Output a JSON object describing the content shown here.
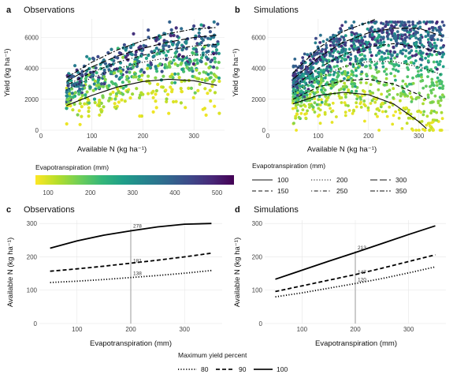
{
  "panels": {
    "a": {
      "letter": "a",
      "title": "Observations"
    },
    "b": {
      "letter": "b",
      "title": "Simulations"
    },
    "c": {
      "letter": "c",
      "title": "Observations"
    },
    "d": {
      "letter": "d",
      "title": "Simulations"
    }
  },
  "labels": {
    "yield_axis": "Yield (kg ha⁻¹)",
    "available_n_axis": "Available N (kg ha⁻¹)",
    "et_axis": "Evapotranspiration (mm)"
  },
  "legend_top": {
    "colorbar_title": "Evapotranspiration (mm)",
    "colorbar_ticks": [
      "100",
      "200",
      "300",
      "400",
      "500"
    ],
    "colorbar_range": [
      70,
      540
    ],
    "colors": [
      "#fde725",
      "#b5de2b",
      "#6ece58",
      "#35b779",
      "#1f9e89",
      "#26828e",
      "#31688e",
      "#3e4989",
      "#482878",
      "#440154"
    ],
    "linetype_title": "Evapotranspiration (mm)",
    "linetype_entries": [
      {
        "label": "100",
        "style": "solid"
      },
      {
        "label": "150",
        "style": "dashed"
      },
      {
        "label": "200",
        "style": "dotted"
      },
      {
        "label": "250",
        "style": "dotdash"
      },
      {
        "label": "300",
        "style": "longdash"
      },
      {
        "label": "350",
        "style": "twodash"
      }
    ]
  },
  "legend_bottom": {
    "title": "Maximum yield percent",
    "entries": [
      {
        "label": "80",
        "style": "dotted"
      },
      {
        "label": "90",
        "style": "dashed"
      },
      {
        "label": "100",
        "style": "solid"
      }
    ]
  },
  "chart_data": [
    {
      "id": "a",
      "type": "scatter",
      "title": "Observations",
      "xlabel": "Available N (kg ha⁻¹)",
      "ylabel": "Yield (kg ha⁻¹)",
      "xlim": [
        0,
        360
      ],
      "ylim": [
        0,
        7200
      ],
      "xticks": [
        0,
        100,
        200,
        300
      ],
      "yticks": [
        0,
        2000,
        4000,
        6000
      ],
      "color_by": "Evapotranspiration (mm)",
      "series": [
        {
          "et": 100,
          "style": "solid",
          "x": [
            50,
            100,
            150,
            200,
            250,
            300,
            345
          ],
          "y": [
            1600,
            2250,
            2800,
            3150,
            3300,
            3200,
            2900
          ]
        },
        {
          "et": 200,
          "style": "dotted",
          "x": [
            50,
            100,
            150,
            200,
            250,
            300,
            345
          ],
          "y": [
            2600,
            3400,
            4000,
            4400,
            4700,
            4850,
            4900
          ]
        },
        {
          "et": 250,
          "style": "dotdash",
          "x": [
            50,
            100,
            150,
            200,
            250,
            300,
            345
          ],
          "y": [
            2900,
            3750,
            4400,
            4850,
            5200,
            5450,
            5550
          ]
        },
        {
          "et": 300,
          "style": "longdash",
          "x": [
            50,
            100,
            150,
            200,
            250,
            300,
            345
          ],
          "y": [
            3150,
            4100,
            4800,
            5300,
            5700,
            6000,
            6150
          ]
        },
        {
          "et": 350,
          "style": "twodash",
          "x": [
            50,
            100,
            150,
            200,
            250,
            300,
            345
          ],
          "y": [
            3400,
            4400,
            5200,
            5800,
            6250,
            6550,
            6650
          ]
        }
      ]
    },
    {
      "id": "b",
      "type": "scatter",
      "title": "Simulations",
      "xlabel": "Available N (kg ha⁻¹)",
      "ylabel": "Yield (kg ha⁻¹)",
      "xlim": [
        0,
        360
      ],
      "ylim": [
        0,
        7200
      ],
      "xticks": [
        0,
        100,
        200,
        300
      ],
      "yticks": [
        0,
        2000,
        4000,
        6000
      ],
      "color_by": "Evapotranspiration (mm)",
      "series": [
        {
          "et": 100,
          "style": "solid",
          "x": [
            50,
            100,
            150,
            200,
            250,
            300,
            315
          ],
          "y": [
            1700,
            2250,
            2450,
            2300,
            1700,
            550,
            100
          ]
        },
        {
          "et": 150,
          "style": "dashed",
          "x": [
            50,
            100,
            150,
            200,
            250,
            300,
            315
          ],
          "y": [
            2000,
            2800,
            3200,
            3300,
            3000,
            2300,
            2000
          ]
        },
        {
          "et": 200,
          "style": "dotted",
          "x": [
            50,
            100,
            150,
            200,
            250,
            300,
            345
          ],
          "y": [
            2400,
            3400,
            4100,
            4450,
            4450,
            4100,
            3600
          ]
        },
        {
          "et": 250,
          "style": "dotdash",
          "x": [
            50,
            100,
            150,
            200,
            250,
            300,
            345
          ],
          "y": [
            2800,
            4000,
            4900,
            5400,
            5600,
            5400,
            5000
          ]
        },
        {
          "et": 300,
          "style": "longdash",
          "x": [
            50,
            100,
            150,
            200,
            250,
            300,
            345
          ],
          "y": [
            3300,
            4700,
            5700,
            6300,
            6600,
            6600,
            6100
          ]
        },
        {
          "et": 350,
          "style": "twodash",
          "x": [
            50,
            100,
            150,
            200,
            215
          ],
          "y": [
            3700,
            5300,
            6400,
            7000,
            7200
          ]
        }
      ]
    },
    {
      "id": "c",
      "type": "line",
      "title": "Observations",
      "xlabel": "Evapotranspiration (mm)",
      "ylabel": "Available N (kg ha⁻¹)",
      "xlim": [
        30,
        370
      ],
      "ylim": [
        0,
        310
      ],
      "xticks": [
        100,
        200,
        300
      ],
      "yticks": [
        0,
        100,
        200,
        300
      ],
      "x": [
        50,
        100,
        150,
        200,
        250,
        300,
        350
      ],
      "series": [
        {
          "name": "100",
          "style": "solid",
          "values": [
            226,
            248,
            265,
            278,
            290,
            298,
            300
          ]
        },
        {
          "name": "90",
          "style": "dashed",
          "values": [
            157,
            164,
            172,
            181,
            190,
            200,
            211
          ]
        },
        {
          "name": "80",
          "style": "dotted",
          "values": [
            123,
            127,
            132,
            138,
            144,
            151,
            159
          ]
        }
      ],
      "vline_x": 200,
      "annotations": [
        "278",
        "181",
        "138"
      ]
    },
    {
      "id": "d",
      "type": "line",
      "title": "Simulations",
      "xlabel": "Evapotranspiration (mm)",
      "ylabel": "Available N (kg ha⁻¹)",
      "xlim": [
        30,
        370
      ],
      "ylim": [
        0,
        310
      ],
      "xticks": [
        100,
        200,
        300
      ],
      "yticks": [
        0,
        100,
        200,
        300
      ],
      "x": [
        50,
        100,
        150,
        200,
        250,
        300,
        350
      ],
      "series": [
        {
          "name": "100",
          "style": "solid",
          "values": [
            133,
            160,
            187,
            213,
            240,
            267,
            293
          ]
        },
        {
          "name": "90",
          "style": "dashed",
          "values": [
            96,
            113,
            130,
            147,
            166,
            186,
            206
          ]
        },
        {
          "name": "80",
          "style": "dotted",
          "values": [
            80,
            92,
            106,
            120,
            135,
            152,
            170
          ]
        }
      ],
      "vline_x": 200,
      "annotations": [
        "213",
        "147",
        "120"
      ]
    }
  ]
}
